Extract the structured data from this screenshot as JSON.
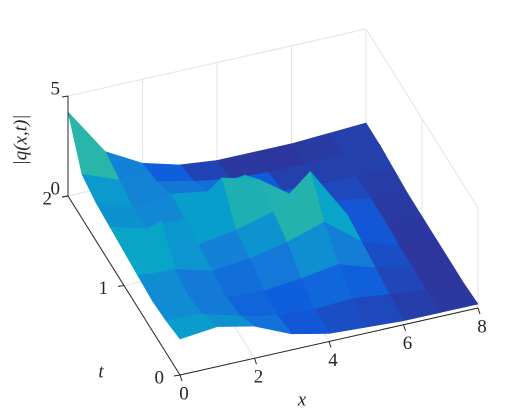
{
  "chart_data": {
    "type": "surface",
    "zlabel": "|q(x,t)|",
    "xlabel": "x",
    "ylabel": "t",
    "x": [
      0,
      1,
      2,
      3,
      4,
      5,
      6,
      7,
      8
    ],
    "y": [
      0,
      0.25,
      0.5,
      0.75,
      1,
      1.25,
      1.5,
      1.75,
      2
    ],
    "z": [
      [
        1.8,
        2.0,
        1.6,
        0.8,
        0.4,
        0.3,
        0.2,
        0.2,
        0.2
      ],
      [
        1.6,
        1.5,
        1.0,
        0.6,
        0.5,
        0.6,
        0.4,
        0.2,
        0.1
      ],
      [
        1.5,
        1.2,
        0.8,
        0.7,
        0.9,
        1.2,
        0.6,
        0.2,
        0.1
      ],
      [
        1.6,
        1.5,
        1.0,
        1.2,
        1.6,
        2.2,
        0.8,
        0.2,
        0.1
      ],
      [
        1.7,
        2.8,
        1.2,
        1.5,
        2.0,
        3.6,
        1.0,
        0.3,
        0.1
      ],
      [
        1.8,
        1.3,
        1.4,
        3.0,
        2.5,
        1.2,
        0.6,
        0.3,
        0.1
      ],
      [
        1.9,
        1.2,
        1.5,
        1.2,
        1.6,
        0.4,
        0.3,
        0.3,
        0.2
      ],
      [
        2.2,
        1.5,
        1.0,
        0.6,
        0.3,
        0.2,
        0.2,
        0.3,
        0.3
      ],
      [
        4.2,
        1.8,
        0.8,
        0.3,
        0.1,
        0.1,
        0.1,
        0.2,
        0.3
      ]
    ],
    "xlim": [
      0,
      8
    ],
    "ylim": [
      0,
      2
    ],
    "zlim": [
      0,
      5
    ],
    "xticks": [
      0,
      2,
      4,
      6,
      8
    ],
    "yticks": [
      0,
      1,
      2
    ],
    "zticks": [
      0,
      5
    ],
    "grid": true,
    "colormap": [
      "#352a87",
      "#0f5cdd",
      "#1481d6",
      "#06a4ca",
      "#2eb7a4",
      "#87bf77",
      "#d1bb59",
      "#fec832",
      "#f9fb0e"
    ]
  }
}
